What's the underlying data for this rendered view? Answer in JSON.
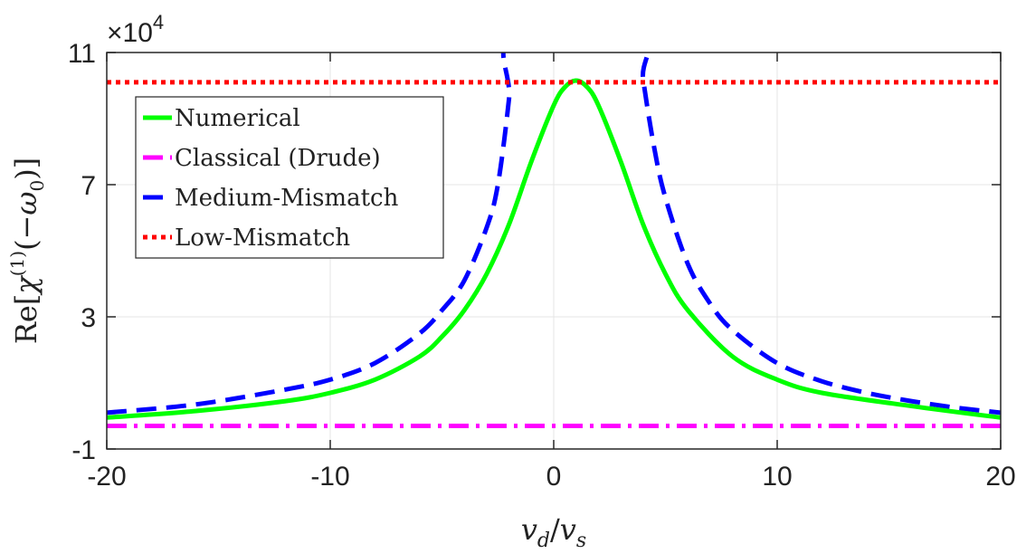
{
  "chart_data": {
    "type": "line",
    "xlabel": "v_d / v_s",
    "ylabel": "Re[χ^(1)(−ω_0)]",
    "multiplier_label": "×10^4",
    "xlim": [
      -20,
      20
    ],
    "ylim": [
      -1,
      11
    ],
    "xticks": [
      "-20",
      "-10",
      "0",
      "10",
      "20"
    ],
    "yticks": [
      "-1",
      "3",
      "7",
      "11"
    ],
    "grid": true,
    "legend_position": "top-left",
    "series": [
      {
        "name": "Numerical",
        "color": "#00ff00",
        "style": "solid",
        "x": [
          -20,
          -16,
          -12,
          -10,
          -8,
          -6,
          -5,
          -4,
          -3,
          -2,
          -1,
          0,
          0.5,
          1,
          1.5,
          2,
          3,
          4,
          5,
          6,
          8,
          10,
          12,
          16,
          20
        ],
        "y": [
          -0.05,
          0.15,
          0.45,
          0.7,
          1.1,
          1.8,
          2.4,
          3.2,
          4.3,
          5.8,
          7.7,
          9.4,
          9.95,
          10.15,
          9.95,
          9.4,
          7.7,
          5.8,
          4.3,
          3.2,
          1.8,
          1.1,
          0.7,
          0.3,
          -0.05
        ]
      },
      {
        "name": "Classical (Drude)",
        "color": "#ff00ff",
        "style": "dashdot",
        "x": [
          -20,
          20
        ],
        "y": [
          -0.3,
          -0.3
        ]
      },
      {
        "name": "Medium-Mismatch",
        "color": "#0000ff",
        "style": "dashed",
        "x": [
          -20,
          -16,
          -12,
          -10,
          -8,
          -6,
          -5,
          -4,
          -3,
          -2.5,
          -2,
          -1.8,
          3.8,
          4,
          4.5,
          5,
          6,
          7,
          8,
          10,
          12,
          14,
          16,
          18,
          20
        ],
        "y": [
          0.1,
          0.35,
          0.8,
          1.1,
          1.6,
          2.5,
          3.2,
          4.1,
          5.7,
          7,
          9.6,
          11.5,
          11.5,
          10.2,
          8.1,
          6.6,
          4.6,
          3.4,
          2.6,
          1.6,
          1.05,
          0.7,
          0.45,
          0.25,
          0.1
        ]
      },
      {
        "name": "Low-Mismatch",
        "color": "#ff0000",
        "style": "dotted",
        "x": [
          -20,
          20
        ],
        "y": [
          10.1,
          10.1
        ]
      }
    ]
  }
}
